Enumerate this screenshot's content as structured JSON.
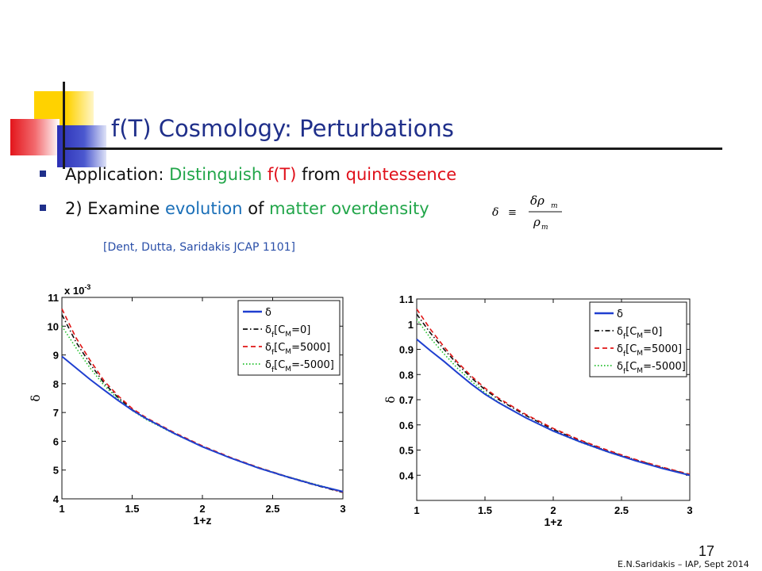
{
  "slide": {
    "title": "f(T) Cosmology: Perturbations",
    "bullet1": {
      "prefix": "Application: ",
      "green1": "Distinguish ",
      "red1": "f(T)",
      "mid": " from ",
      "red2": "quintessence"
    },
    "bullet2": {
      "prefix": "2)  Examine ",
      "blue": "evolution",
      "mid": " of ",
      "green": "matter overdensity"
    },
    "formula": {
      "lhs": "δ",
      "eq": "≡",
      "num": "δρ",
      "num_sub": "m",
      "den": "ρ",
      "den_sub": "m"
    },
    "citation": "[Dent, Dutta, Saridakis  JCAP 1101]",
    "slide_number": "17",
    "footer": "E.N.Saridakis – IAP, Sept 2014",
    "colors": {
      "title": "#1f2f8a",
      "green": "#22a64a",
      "red": "#e0101a",
      "blue": "#1a6fb8"
    }
  },
  "chart_data": [
    {
      "type": "line",
      "xlabel": "1+z",
      "ylabel": "δ",
      "scale_note": "x 10^-3",
      "xlim": [
        1,
        3
      ],
      "ylim": [
        4,
        11
      ],
      "xticks": [
        1,
        1.5,
        2,
        2.5,
        3
      ],
      "xtick_labels": [
        "1",
        "1.5",
        "2",
        "2.5",
        "3"
      ],
      "yticks": [
        4,
        5,
        6,
        7,
        8,
        9,
        10,
        11
      ],
      "ytick_labels": [
        "4",
        "5",
        "6",
        "7",
        "8",
        "9",
        "10",
        "11"
      ],
      "legend_position": "top-right",
      "x": [
        1.0,
        1.1,
        1.2,
        1.3,
        1.4,
        1.5,
        1.6,
        1.8,
        2.0,
        2.2,
        2.4,
        2.6,
        2.8,
        3.0
      ],
      "series": [
        {
          "name": "δ",
          "style": "solid",
          "color": "#1f3fd0",
          "values": [
            8.95,
            8.55,
            8.15,
            7.78,
            7.42,
            7.08,
            6.79,
            6.27,
            5.81,
            5.42,
            5.07,
            4.77,
            4.49,
            4.25
          ]
        },
        {
          "name": "δf[CM=0]",
          "style": "dashdot",
          "color": "#111111",
          "values": [
            10.4,
            9.45,
            8.7,
            8.02,
            7.52,
            7.1,
            6.78,
            6.28,
            5.82,
            5.42,
            5.07,
            4.76,
            4.48,
            4.22
          ]
        },
        {
          "name": "δf[CM=5000]",
          "style": "dashed",
          "color": "#e01515",
          "values": [
            10.6,
            9.6,
            8.82,
            8.1,
            7.58,
            7.14,
            6.82,
            6.3,
            5.84,
            5.44,
            5.09,
            4.78,
            4.5,
            4.23
          ]
        },
        {
          "name": "δf[CM=-5000]",
          "style": "dotted",
          "color": "#1fbf2a",
          "values": [
            10.0,
            9.25,
            8.55,
            7.94,
            7.47,
            7.07,
            6.76,
            6.26,
            5.81,
            5.42,
            5.08,
            4.78,
            4.51,
            4.25
          ]
        }
      ],
      "legend_labels": [
        {
          "base": "δ",
          "sub": "",
          "bracket": ""
        },
        {
          "base": "δ",
          "sub": "f",
          "bracket": "[C",
          "bsub": "M",
          "rest": "=0]"
        },
        {
          "base": "δ",
          "sub": "f",
          "bracket": "[C",
          "bsub": "M",
          "rest": "=5000]"
        },
        {
          "base": "δ",
          "sub": "f",
          "bracket": "[C",
          "bsub": "M",
          "rest": "=-5000]"
        }
      ]
    },
    {
      "type": "line",
      "xlabel": "1+z",
      "ylabel": "δ",
      "xlim": [
        1,
        3
      ],
      "ylim": [
        0.3,
        1.1
      ],
      "xticks": [
        1,
        1.5,
        2,
        2.5,
        3
      ],
      "xtick_labels": [
        "1",
        "1.5",
        "2",
        "2.5",
        "3"
      ],
      "yticks": [
        0.4,
        0.5,
        0.6,
        0.7,
        0.8,
        0.9,
        1.0,
        1.1
      ],
      "ytick_labels": [
        "0.4",
        "0.5",
        "0.6",
        "0.7",
        "0.8",
        "0.9",
        "1",
        "1.1"
      ],
      "legend_position": "top-right",
      "x": [
        1.0,
        1.1,
        1.2,
        1.3,
        1.4,
        1.5,
        1.6,
        1.8,
        2.0,
        2.2,
        2.4,
        2.6,
        2.8,
        3.0
      ],
      "series": [
        {
          "name": "δ",
          "style": "solid",
          "color": "#1f3fd0",
          "values": [
            0.94,
            0.895,
            0.852,
            0.806,
            0.762,
            0.722,
            0.688,
            0.628,
            0.576,
            0.532,
            0.493,
            0.458,
            0.427,
            0.4
          ]
        },
        {
          "name": "δf[CM=0]",
          "style": "dashdot",
          "color": "#111111",
          "values": [
            1.04,
            0.965,
            0.9,
            0.84,
            0.787,
            0.74,
            0.701,
            0.637,
            0.582,
            0.536,
            0.496,
            0.461,
            0.43,
            0.402
          ]
        },
        {
          "name": "δf[CM=5000]",
          "style": "dashed",
          "color": "#e01515",
          "values": [
            1.06,
            0.98,
            0.91,
            0.848,
            0.794,
            0.746,
            0.706,
            0.641,
            0.586,
            0.539,
            0.499,
            0.463,
            0.432,
            0.404
          ]
        },
        {
          "name": "δf[CM=-5000]",
          "style": "dotted",
          "color": "#1fbf2a",
          "values": [
            1.02,
            0.945,
            0.882,
            0.824,
            0.774,
            0.728,
            0.69,
            0.628,
            0.575,
            0.531,
            0.492,
            0.458,
            0.428,
            0.401
          ]
        }
      ],
      "legend_labels": [
        {
          "base": "δ",
          "sub": "",
          "bracket": ""
        },
        {
          "base": "δ",
          "sub": "f",
          "bracket": "[C",
          "bsub": "M",
          "rest": "=0]"
        },
        {
          "base": "δ",
          "sub": "f",
          "bracket": "[C",
          "bsub": "M",
          "rest": "=5000]"
        },
        {
          "base": "δ",
          "sub": "f",
          "bracket": "[C",
          "bsub": "M",
          "rest": "=-5000]"
        }
      ]
    }
  ]
}
